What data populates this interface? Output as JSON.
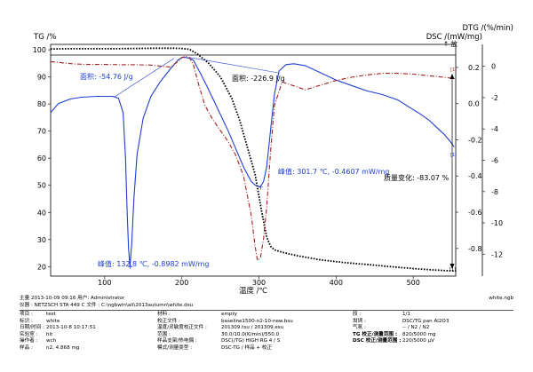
{
  "chart_data": {
    "type": "line",
    "xlabel": "温度 /℃",
    "xlim": [
      30,
      555
    ],
    "x_ticks": [
      100,
      200,
      300,
      400,
      500
    ],
    "axes": {
      "tg": {
        "label": "TG /%",
        "ylim": [
          16.5,
          102
        ],
        "ticks": [
          20,
          30,
          40,
          50,
          60,
          70,
          80,
          90,
          100
        ]
      },
      "dtg": {
        "label": "DTG /(%/min)",
        "ylim": [
          -13.4,
          1.4
        ],
        "ticks": [
          0,
          -2,
          -4,
          -6,
          -8,
          -10,
          -12
        ]
      },
      "dsc": {
        "label": "DSC /(mW/mg)",
        "exo_label": "↑ 放",
        "ylim": [
          -0.953,
          0.327
        ],
        "ticks": [
          0.2,
          0,
          -0.2,
          -0.4,
          -0.6,
          -0.8
        ]
      }
    },
    "series": [
      {
        "key": "dsc",
        "axis": "dsc",
        "color": "#1f3fd1",
        "style": "solid",
        "x": [
          30,
          40,
          55,
          70,
          90,
          110,
          118,
          124,
          127,
          129,
          131,
          132.8,
          135,
          138,
          142,
          150,
          160,
          172,
          185,
          195,
          200,
          205,
          210,
          215,
          220,
          225,
          232,
          240,
          250,
          260,
          270,
          280,
          290,
          295,
          301.7,
          306,
          310,
          315,
          320,
          326,
          335,
          345,
          360,
          380,
          400,
          420,
          440,
          460,
          480,
          495,
          510,
          520,
          530,
          540,
          548,
          553
        ],
        "y": [
          -0.05,
          0.0,
          0.025,
          0.035,
          0.04,
          0.04,
          0.03,
          -0.05,
          -0.3,
          -0.58,
          -0.8,
          -0.8982,
          -0.78,
          -0.52,
          -0.28,
          -0.08,
          0.04,
          0.12,
          0.19,
          0.24,
          0.255,
          0.255,
          0.25,
          0.24,
          0.2,
          0.16,
          0.1,
          0.03,
          -0.06,
          -0.15,
          -0.25,
          -0.35,
          -0.43,
          -0.45,
          -0.4607,
          -0.43,
          -0.35,
          -0.15,
          0.05,
          0.18,
          0.215,
          0.22,
          0.21,
          0.17,
          0.13,
          0.1,
          0.07,
          0.05,
          0.02,
          -0.02,
          -0.06,
          -0.09,
          -0.13,
          -0.17,
          -0.21,
          -0.24
        ]
      },
      {
        "key": "tg",
        "axis": "tg",
        "color": "#000000",
        "style": "dotted",
        "x": [
          30,
          50,
          80,
          110,
          140,
          170,
          190,
          200,
          210,
          220,
          235,
          250,
          265,
          275,
          285,
          295,
          300,
          305,
          310,
          315,
          320,
          330,
          350,
          380,
          410,
          440,
          470,
          500,
          525,
          545,
          555
        ],
        "y": [
          100.3,
          100.4,
          100.4,
          100.4,
          100.5,
          100.6,
          100.6,
          100.5,
          100.2,
          98.5,
          95.0,
          90.0,
          82.0,
          74.0,
          64.0,
          54.0,
          46.0,
          38.0,
          31.0,
          27.5,
          26.2,
          25.3,
          24.0,
          22.5,
          21.5,
          20.8,
          20.0,
          19.3,
          18.8,
          18.5,
          18.4
        ]
      },
      {
        "key": "dtg",
        "axis": "dtg",
        "color": "#a52020",
        "style": "dashdot",
        "x": [
          30,
          40,
          60,
          80,
          100,
          120,
          140,
          160,
          175,
          185,
          195,
          200,
          205,
          210,
          215,
          222,
          230,
          240,
          250,
          260,
          270,
          280,
          290,
          295,
          298,
          302,
          306,
          310,
          315,
          320,
          330,
          345,
          360,
          380,
          400,
          420,
          440,
          460,
          480,
          500,
          520,
          540,
          555
        ],
        "y": [
          0.3,
          0.25,
          0.15,
          0.12,
          0.12,
          0.1,
          0.1,
          0.08,
          0.0,
          -0.05,
          0.3,
          0.55,
          0.65,
          0.55,
          0.1,
          -1.2,
          -2.5,
          -3.4,
          -4.1,
          -4.8,
          -5.7,
          -7.0,
          -9.5,
          -11.5,
          -12.4,
          -12.2,
          -11.0,
          -9.0,
          -5.5,
          -2.5,
          -1.0,
          -1.25,
          -1.5,
          -1.2,
          -0.9,
          -0.7,
          -0.55,
          -0.45,
          -0.45,
          -0.5,
          -0.6,
          -0.7,
          -0.8
        ]
      }
    ],
    "annotations": {
      "area1": "面积: -54.76 J/g",
      "area2": "面积: -226.9 J/g",
      "peak1": "峰值: 132.8 ℃, -0.8982 mW/mg",
      "peak2": "峰值: 301.7 ℃, -0.4607 mW/mg",
      "mass_change": "质量变化: -83.07 %",
      "marker1": "[1]"
    }
  },
  "info": {
    "header_left": "主量 2013-10-09 09:16    用户: Administrator",
    "header_right": "white.ngb",
    "instrument_row": "仪器 :    NETZSCH STA 449 C    文件 :    C:\\ngbwin\\ali\\2013autumn\\white.dsu",
    "col1": [
      {
        "k": "项目 :",
        "v": "test"
      },
      {
        "k": "标识 :",
        "v": "white"
      },
      {
        "k": "日期/时间 :",
        "v": "2013-10-8 10:17:51"
      },
      {
        "k": "实验室 :",
        "v": "hit"
      },
      {
        "k": "操作者 :",
        "v": "wch"
      },
      {
        "k": "样品 :",
        "v": "n2, 4.868 mg"
      }
    ],
    "col2": [
      {
        "k": "材料 :",
        "v": "empty"
      },
      {
        "k": "校正文件 :",
        "v": "baseline1500-n2-10-new.bsu"
      },
      {
        "k": "温度/灵敏度校正文件 :",
        "v": "201309.tsu / 201309.esu"
      },
      {
        "k": "范围 :",
        "v": "30.0/10.0(K/min)/550.0"
      },
      {
        "k": "样品支架/热电偶 :",
        "v": "DSC(/TG) HIGH RG 4 / S"
      },
      {
        "k": "模式/测量类型 :",
        "v": "DSC-TG / 样品 + 校正"
      }
    ],
    "col3": [
      {
        "k": "段 :",
        "v": "1/1"
      },
      {
        "k": "坩埚 :",
        "v": "DSC/TG pan Al2O3"
      },
      {
        "k": "气氛 :",
        "v": "-- / N2 / N2"
      },
      {
        "k": "TG 校正/测量范围 :",
        "v": "820/5000 mg"
      },
      {
        "k": "DSC 校正/测量范围 :",
        "v": "220/5000 µV"
      }
    ]
  }
}
